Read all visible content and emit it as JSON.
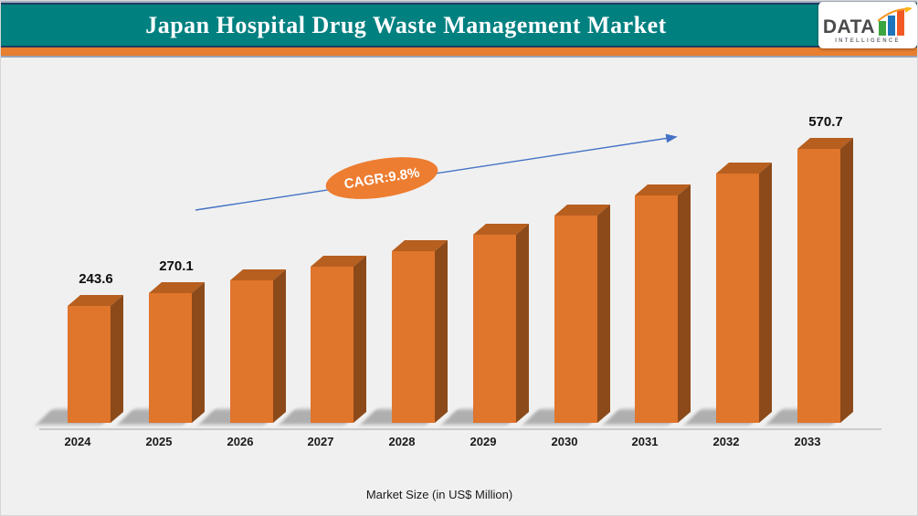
{
  "header": {
    "title": "Japan Hospital Drug Waste Management Market"
  },
  "logo": {
    "name": "DATA",
    "subname": "INTELLIGENCE",
    "bar_colors": [
      "#3ba53f",
      "#1c75bc",
      "#f15a24"
    ],
    "arrow_color": "#f7941d"
  },
  "colors": {
    "header_band": "#018080",
    "header_stripe": "#e87e2f",
    "bar_front": "#e0752c",
    "bar_top": "#b75f1f",
    "bar_side": "#8c4a1a",
    "trend_arrow": "#4472c4",
    "cagr_badge": "#ed7d31",
    "background": "#f0f0f0"
  },
  "chart_data": {
    "type": "bar",
    "title": "Japan Hospital Drug Waste Management Market",
    "xlabel": "Market Size (in US$ Million)",
    "categories": [
      "2024",
      "2025",
      "2026",
      "2027",
      "2028",
      "2029",
      "2030",
      "2031",
      "2032",
      "2033"
    ],
    "values": [
      243.6,
      270.1,
      296.6,
      325.6,
      357.5,
      392.6,
      431.0,
      473.3,
      519.6,
      570.7
    ],
    "data_labels": [
      "243.6",
      "270.1",
      "",
      "",
      "",
      "",
      "",
      "",
      "",
      "570.7"
    ],
    "annotation": "CAGR:9.8%",
    "ylim": [
      0,
      600
    ],
    "grid": "off",
    "legend": "none",
    "style": "3d-column"
  }
}
